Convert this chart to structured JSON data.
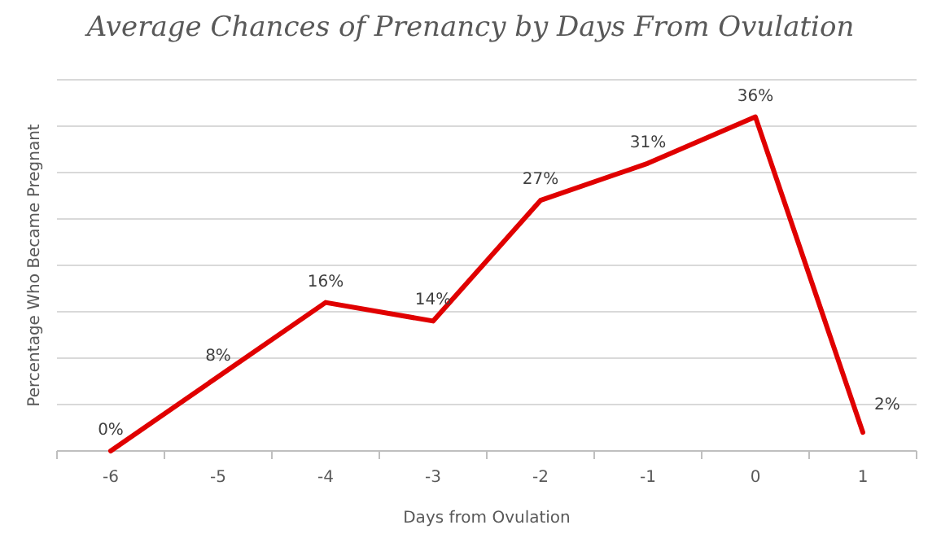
{
  "chart_data": {
    "type": "line",
    "title": "Average Chances of Prenancy by Days From Ovulation",
    "xlabel": "Days from Ovulation",
    "ylabel": "Percentage Who Became Pregnant",
    "categories": [
      "-6",
      "-5",
      "-4",
      "-3",
      "-2",
      "-1",
      "0",
      "1"
    ],
    "series": [
      {
        "color": "#e00000",
        "values": [
          0,
          8,
          16,
          14,
          27,
          31,
          36,
          2
        ],
        "value_labels": [
          "0%",
          "8%",
          "16%",
          "14%",
          "27%",
          "31%",
          "36%",
          "2%"
        ]
      }
    ],
    "ylim": [
      0,
      40
    ],
    "yticks": [
      {
        "value": 0,
        "label": null
      },
      {
        "value": 5,
        "label": null
      },
      {
        "value": 10,
        "label": null
      },
      {
        "value": 15,
        "label": null
      },
      {
        "value": 20,
        "label": null
      },
      {
        "value": 25,
        "label": null
      },
      {
        "value": 30,
        "label": null
      },
      {
        "value": 35,
        "label": null
      },
      {
        "value": 40,
        "label": null
      }
    ],
    "tick_labels": "x",
    "grid": "y",
    "marker": "none",
    "line_style": "solid"
  }
}
